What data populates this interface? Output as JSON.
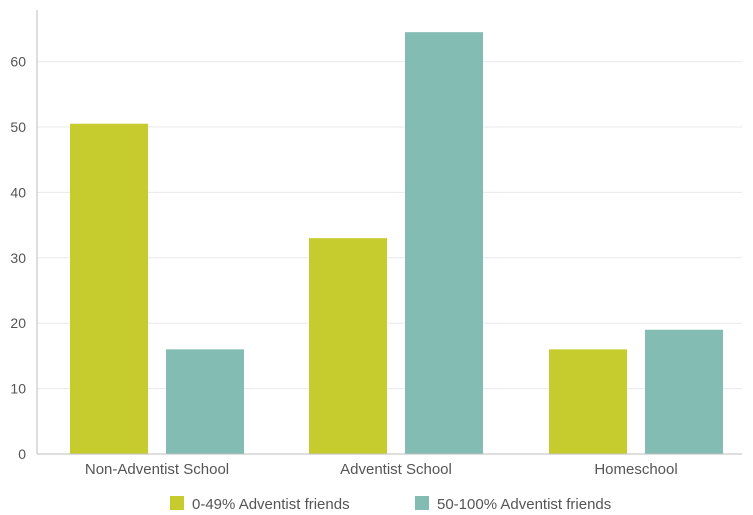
{
  "chart_data": {
    "type": "bar",
    "categories": [
      "Non-Adventist School",
      "Adventist School",
      "Homeschool"
    ],
    "series": [
      {
        "name": "0-49% Adventist friends",
        "values": [
          50.5,
          33,
          16
        ],
        "color": "#c6cb2e"
      },
      {
        "name": "50-100% Adventist friends",
        "values": [
          16,
          64.5,
          19
        ],
        "color": "#82bcb3"
      }
    ],
    "yticks": [
      "0",
      "10",
      "20",
      "30",
      "40",
      "50",
      "60"
    ],
    "ylim": [
      0,
      68
    ],
    "grid": true,
    "legend_position": "bottom-center"
  }
}
